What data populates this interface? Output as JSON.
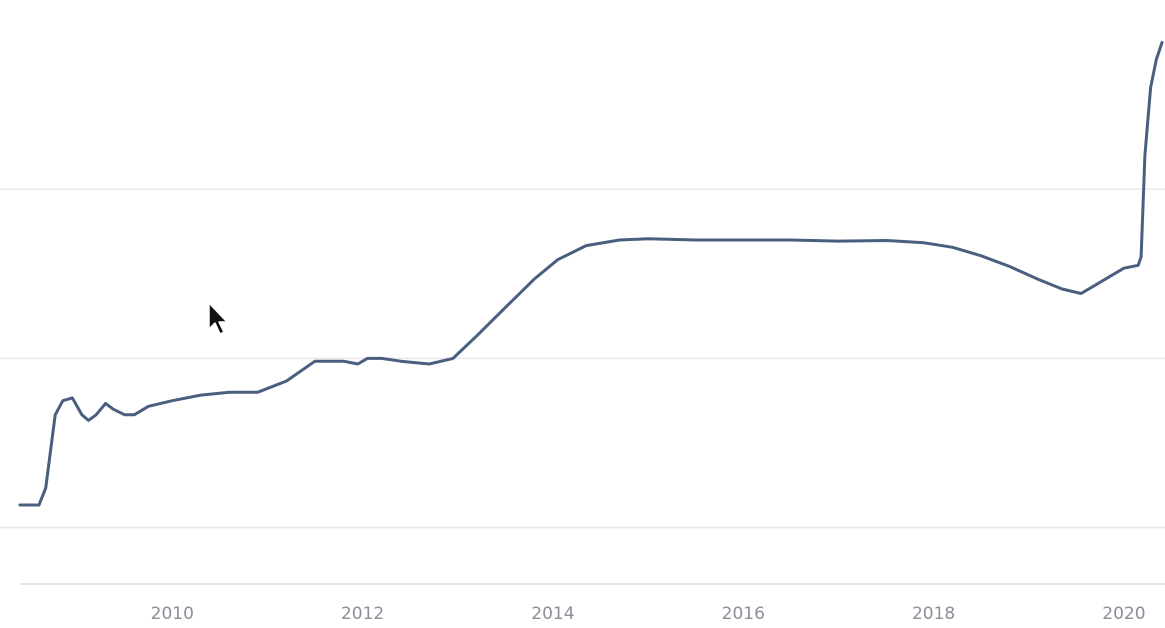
{
  "chart_data": {
    "type": "line",
    "title": "",
    "xlabel": "",
    "ylabel": "",
    "grid": true,
    "legend": "none",
    "xlim": [
      2008.4,
      2020.4
    ],
    "ylim": [
      0,
      1
    ],
    "gridlines_y": [
      0.1,
      0.4,
      0.7
    ],
    "x_ticks": [
      2010,
      2012,
      2014,
      2016,
      2018,
      2020
    ],
    "x_tick_labels": [
      "2010",
      "2012",
      "2014",
      "2016",
      "2018",
      "2020"
    ],
    "series": [
      {
        "color": "#4a5f80",
        "points": [
          [
            2008.4,
            0.14
          ],
          [
            2008.6,
            0.14
          ],
          [
            2008.67,
            0.17
          ],
          [
            2008.77,
            0.3
          ],
          [
            2008.85,
            0.325
          ],
          [
            2008.95,
            0.33
          ],
          [
            2009.05,
            0.3
          ],
          [
            2009.12,
            0.29
          ],
          [
            2009.2,
            0.3
          ],
          [
            2009.3,
            0.32
          ],
          [
            2009.38,
            0.31
          ],
          [
            2009.5,
            0.3
          ],
          [
            2009.6,
            0.3
          ],
          [
            2009.75,
            0.315
          ],
          [
            2010.0,
            0.325
          ],
          [
            2010.3,
            0.335
          ],
          [
            2010.6,
            0.34
          ],
          [
            2010.9,
            0.34
          ],
          [
            2011.2,
            0.36
          ],
          [
            2011.5,
            0.395
          ],
          [
            2011.8,
            0.395
          ],
          [
            2011.95,
            0.39
          ],
          [
            2012.05,
            0.4
          ],
          [
            2012.2,
            0.4
          ],
          [
            2012.4,
            0.395
          ],
          [
            2012.7,
            0.39
          ],
          [
            2012.95,
            0.4
          ],
          [
            2013.2,
            0.44
          ],
          [
            2013.5,
            0.49
          ],
          [
            2013.8,
            0.54
          ],
          [
            2014.05,
            0.575
          ],
          [
            2014.35,
            0.6
          ],
          [
            2014.7,
            0.61
          ],
          [
            2015.0,
            0.612
          ],
          [
            2015.5,
            0.61
          ],
          [
            2016.0,
            0.61
          ],
          [
            2016.5,
            0.61
          ],
          [
            2017.0,
            0.608
          ],
          [
            2017.5,
            0.609
          ],
          [
            2017.9,
            0.605
          ],
          [
            2018.2,
            0.597
          ],
          [
            2018.5,
            0.582
          ],
          [
            2018.8,
            0.563
          ],
          [
            2019.1,
            0.54
          ],
          [
            2019.35,
            0.523
          ],
          [
            2019.55,
            0.515
          ],
          [
            2019.7,
            0.53
          ],
          [
            2019.85,
            0.545
          ],
          [
            2020.0,
            0.56
          ],
          [
            2020.15,
            0.565
          ],
          [
            2020.18,
            0.58
          ],
          [
            2020.22,
            0.76
          ],
          [
            2020.28,
            0.88
          ],
          [
            2020.34,
            0.93
          ],
          [
            2020.4,
            0.96
          ]
        ]
      }
    ]
  },
  "cursor": {
    "icon": "mouse-pointer-icon"
  }
}
